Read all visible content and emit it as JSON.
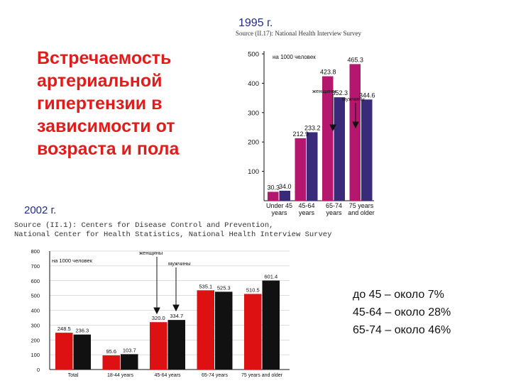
{
  "title": "Встречаемость\nартериальной\nгипертензии в\nзависимости от\nвозраста и пола",
  "chart1995": {
    "year": "1995 г.",
    "source": "Source (II.17): National Health Interview Survey",
    "unit_note": "на 1000 человек",
    "women_label": "женщины",
    "men_label": "мужчины",
    "colors": {
      "women": "#b5176e",
      "men": "#3a2a7a"
    }
  },
  "chart2002": {
    "year": "2002 г.",
    "source": "Source (II.1): Centers for Disease Control and Prevention,\nNational Center for Health Statistics, National Health Interview Survey",
    "unit_note": "на 1000 человек",
    "women_label": "женщины",
    "men_label": "мужчины",
    "colors": {
      "women": "#dd1111",
      "men": "#111111"
    }
  },
  "stats": [
    "до 45 – около 7%",
    "45-64 – около 28%",
    "65-74 – около 46%"
  ],
  "chart_data": [
    {
      "type": "bar",
      "title": "1995 г.",
      "categories": [
        "Under 45 years",
        "45-64 years",
        "65-74 years",
        "75 years and older"
      ],
      "series": [
        {
          "name": "женщины",
          "values": [
            30.3,
            212.9,
            423.8,
            465.3
          ]
        },
        {
          "name": "мужчины",
          "values": [
            34.0,
            233.2,
            352.3,
            344.6
          ]
        }
      ],
      "ylim": [
        0,
        500
      ],
      "yticks": [
        100,
        200,
        300,
        400,
        500
      ],
      "value_labels": [
        [
          "30.3",
          "212.9",
          "423.8",
          "465.3"
        ],
        [
          "34.0",
          "233.2",
          "352.3",
          "344.6"
        ]
      ],
      "grid": false
    },
    {
      "type": "bar",
      "title": "2002 г.",
      "categories": [
        "Total",
        "18-44 years",
        "45-64 years",
        "65-74 years",
        "75 years and older"
      ],
      "series": [
        {
          "name": "женщины",
          "values": [
            248.5,
            95.6,
            320.0,
            535.1,
            510.5
          ]
        },
        {
          "name": "мужчины",
          "values": [
            236.3,
            103.7,
            334.7,
            525.3,
            601.4
          ]
        }
      ],
      "ylim": [
        0,
        800
      ],
      "yticks": [
        0,
        100,
        200,
        300,
        400,
        500,
        600,
        700,
        800
      ],
      "value_labels": [
        [
          "248.5",
          "95.6",
          "320.0",
          "535.1",
          "510.5"
        ],
        [
          "236.3",
          "103.7",
          "334.7",
          "525.3",
          "601.4"
        ]
      ],
      "grid": true
    }
  ]
}
